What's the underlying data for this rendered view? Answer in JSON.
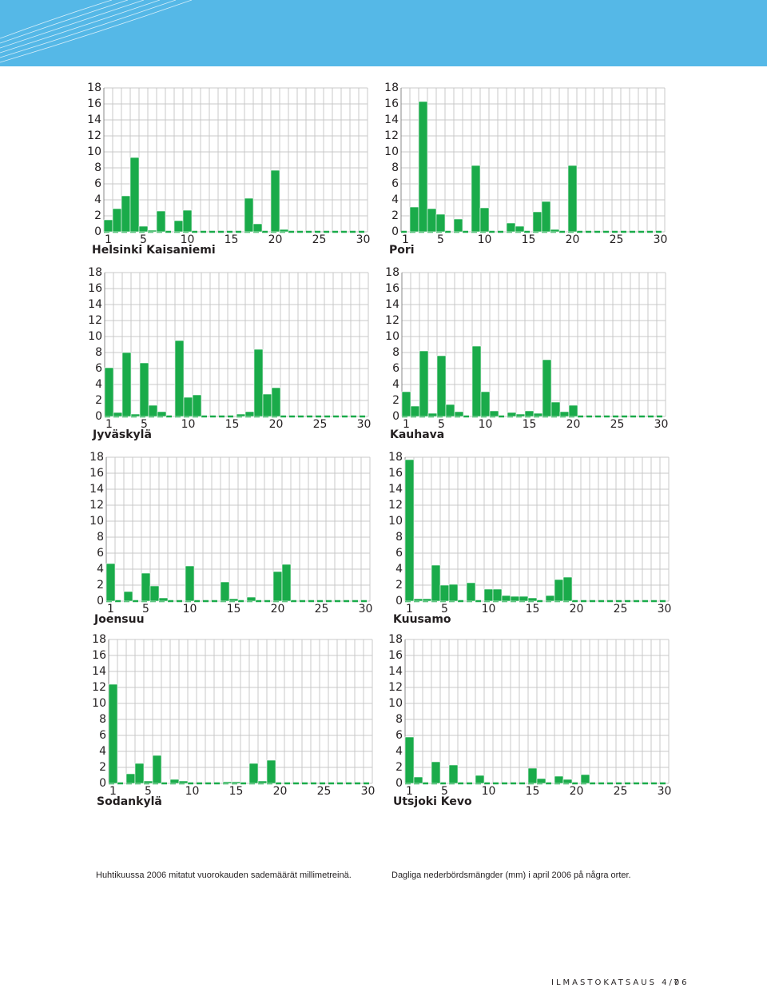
{
  "chart_data": [
    {
      "type": "bar",
      "title": "Helsinki Kaisaniemi",
      "color": "#1aab4a",
      "grid": true,
      "categories": [
        1,
        null,
        null,
        null,
        5,
        null,
        null,
        null,
        null,
        10,
        null,
        null,
        null,
        null,
        15,
        null,
        null,
        null,
        null,
        20,
        null,
        null,
        null,
        null,
        25,
        null,
        null,
        null,
        null,
        30
      ],
      "values": [
        1.5,
        2.9,
        4.5,
        9.3,
        0.7,
        0.2,
        2.6,
        0,
        1.4,
        2.7,
        0,
        0,
        0,
        0,
        0,
        0,
        4.2,
        1.0,
        0,
        7.7,
        0.3,
        0,
        0,
        0,
        0,
        0,
        0,
        0,
        0,
        0
      ],
      "ylim": [
        0,
        18
      ],
      "yticks": [
        0,
        2,
        4,
        6,
        8,
        10,
        12,
        14,
        16,
        18
      ]
    },
    {
      "type": "bar",
      "title": "Pori",
      "color": "#1aab4a",
      "grid": true,
      "categories": [
        1,
        null,
        null,
        null,
        5,
        null,
        null,
        null,
        null,
        10,
        null,
        null,
        null,
        null,
        15,
        null,
        null,
        null,
        null,
        20,
        null,
        null,
        null,
        null,
        25,
        null,
        null,
        null,
        null,
        30
      ],
      "values": [
        0,
        3.1,
        16.3,
        2.9,
        2.2,
        0,
        1.6,
        0,
        8.3,
        3.0,
        0,
        0,
        1.1,
        0.7,
        0,
        2.5,
        3.8,
        0.3,
        0,
        8.3,
        0,
        0,
        0,
        0,
        0,
        0,
        0,
        0,
        0,
        0
      ],
      "ylim": [
        0,
        18
      ],
      "yticks": [
        0,
        2,
        4,
        6,
        8,
        10,
        12,
        14,
        16,
        18
      ]
    },
    {
      "type": "bar",
      "title": "Jyväskylä",
      "color": "#1aab4a",
      "grid": true,
      "categories": [
        1,
        null,
        null,
        null,
        5,
        null,
        null,
        null,
        null,
        10,
        null,
        null,
        null,
        null,
        15,
        null,
        null,
        null,
        null,
        20,
        null,
        null,
        null,
        null,
        25,
        null,
        null,
        null,
        null,
        30
      ],
      "values": [
        6.1,
        0.5,
        8.0,
        0.3,
        6.7,
        1.4,
        0.6,
        0,
        9.5,
        2.4,
        2.7,
        0,
        0,
        0,
        0,
        0.3,
        0.6,
        8.4,
        2.8,
        3.6,
        0,
        0,
        0,
        0,
        0,
        0,
        0,
        0,
        0,
        0
      ],
      "ylim": [
        0,
        18
      ],
      "yticks": [
        0,
        2,
        4,
        6,
        8,
        10,
        12,
        14,
        16,
        18
      ]
    },
    {
      "type": "bar",
      "title": "Kauhava",
      "color": "#1aab4a",
      "grid": true,
      "categories": [
        1,
        null,
        null,
        null,
        5,
        null,
        null,
        null,
        null,
        10,
        null,
        null,
        null,
        null,
        15,
        null,
        null,
        null,
        null,
        20,
        null,
        null,
        null,
        null,
        25,
        null,
        null,
        null,
        null,
        30
      ],
      "values": [
        3.1,
        1.3,
        8.2,
        0.4,
        7.6,
        1.5,
        0.6,
        0,
        8.8,
        3.1,
        0.7,
        0,
        0.5,
        0.3,
        0.7,
        0.4,
        7.1,
        1.8,
        0.6,
        1.4,
        0,
        0,
        0,
        0,
        0,
        0,
        0,
        0,
        0,
        0
      ],
      "ylim": [
        0,
        18
      ],
      "yticks": [
        0,
        2,
        4,
        6,
        8,
        10,
        12,
        14,
        16,
        18
      ]
    },
    {
      "type": "bar",
      "title": "Joensuu",
      "color": "#1aab4a",
      "grid": true,
      "categories": [
        1,
        null,
        null,
        null,
        5,
        null,
        null,
        null,
        null,
        10,
        null,
        null,
        null,
        null,
        15,
        null,
        null,
        null,
        null,
        20,
        null,
        null,
        null,
        null,
        25,
        null,
        null,
        null,
        null,
        30
      ],
      "values": [
        4.7,
        0,
        1.2,
        0,
        3.5,
        1.9,
        0.4,
        0,
        0,
        4.4,
        0,
        0,
        0,
        2.4,
        0.3,
        0,
        0.5,
        0,
        0,
        3.7,
        4.6,
        0,
        0,
        0,
        0,
        0,
        0,
        0,
        0,
        0
      ],
      "ylim": [
        0,
        18
      ],
      "yticks": [
        0,
        2,
        4,
        6,
        8,
        10,
        12,
        14,
        16,
        18
      ]
    },
    {
      "type": "bar",
      "title": "Kuusamo",
      "color": "#1aab4a",
      "grid": true,
      "categories": [
        1,
        null,
        null,
        null,
        5,
        null,
        null,
        null,
        null,
        10,
        null,
        null,
        null,
        null,
        15,
        null,
        null,
        null,
        null,
        20,
        null,
        null,
        null,
        null,
        25,
        null,
        null,
        null,
        null,
        30
      ],
      "values": [
        17.7,
        0.3,
        0.3,
        4.5,
        2.0,
        2.1,
        0,
        2.3,
        0,
        1.5,
        1.5,
        0.7,
        0.6,
        0.6,
        0.4,
        0,
        0.7,
        2.7,
        3.0,
        0,
        0,
        0,
        0,
        0,
        0,
        0,
        0,
        0,
        0,
        0
      ],
      "ylim": [
        0,
        18
      ],
      "yticks": [
        0,
        2,
        4,
        6,
        8,
        10,
        12,
        14,
        16,
        18
      ]
    },
    {
      "type": "bar",
      "title": "Sodankylä",
      "color": "#1aab4a",
      "grid": true,
      "categories": [
        1,
        null,
        null,
        null,
        5,
        null,
        null,
        null,
        null,
        10,
        null,
        null,
        null,
        null,
        15,
        null,
        null,
        null,
        null,
        20,
        null,
        null,
        null,
        null,
        25,
        null,
        null,
        null,
        null,
        30
      ],
      "values": [
        12.4,
        0,
        1.2,
        2.5,
        0.3,
        3.5,
        0,
        0.5,
        0.3,
        0,
        0,
        0,
        0,
        0.2,
        0.2,
        0,
        2.5,
        0.3,
        2.9,
        0,
        0,
        0,
        0,
        0,
        0,
        0,
        0,
        0,
        0,
        0
      ],
      "ylim": [
        0,
        18
      ],
      "yticks": [
        0,
        2,
        4,
        6,
        8,
        10,
        12,
        14,
        16,
        18
      ]
    },
    {
      "type": "bar",
      "title": "Utsjoki Kevo",
      "color": "#1aab4a",
      "grid": true,
      "categories": [
        1,
        null,
        null,
        null,
        5,
        null,
        null,
        null,
        null,
        10,
        null,
        null,
        null,
        null,
        15,
        null,
        null,
        null,
        null,
        20,
        null,
        null,
        null,
        null,
        25,
        null,
        null,
        null,
        null,
        30
      ],
      "values": [
        5.8,
        0.8,
        0,
        2.7,
        0,
        2.3,
        0,
        0,
        1.0,
        0,
        0,
        0,
        0,
        0,
        1.9,
        0.6,
        0,
        0.9,
        0.5,
        0,
        1.1,
        0,
        0,
        0,
        0,
        0,
        0,
        0,
        0,
        0
      ],
      "ylim": [
        0,
        18
      ],
      "yticks": [
        0,
        2,
        4,
        6,
        8,
        10,
        12,
        14,
        16,
        18
      ]
    }
  ],
  "caption_left": "Huhtikuussa 2006 mitatut vuorokauden sademäärät millimetreinä.",
  "caption_right": "Dagliga nederbördsmängder (mm) i april 2006 på några orter.",
  "footer_title": "ILMASTOKATSAUS 4/06",
  "page_number": "7"
}
